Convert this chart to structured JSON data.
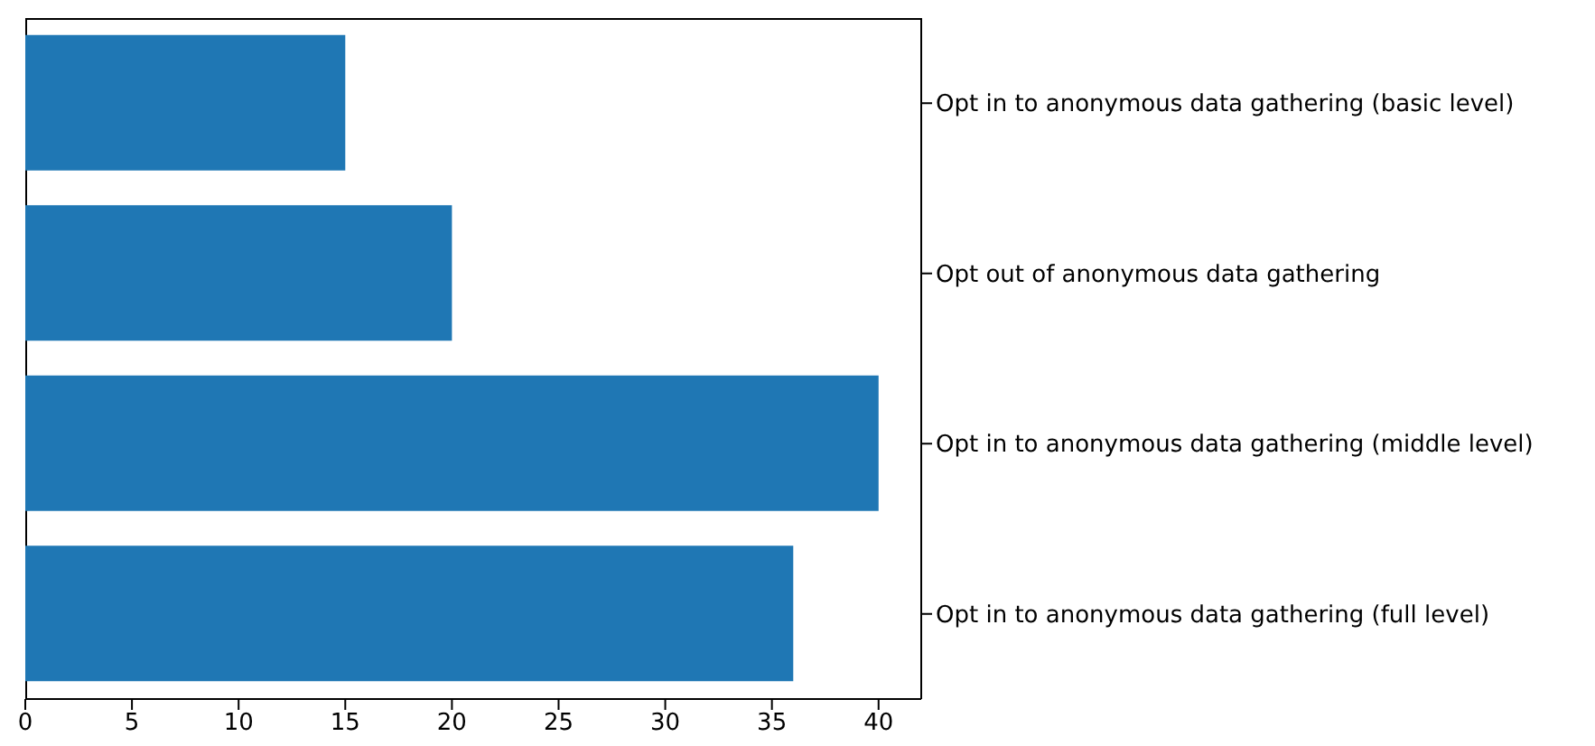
{
  "chart_data": {
    "type": "bar",
    "orientation": "horizontal",
    "categories": [
      "Opt in to anonymous data gathering (basic level)",
      "Opt out of anonymous data gathering",
      "Opt in to anonymous data gathering (middle level)",
      "Opt in to anonymous data gathering (full level)"
    ],
    "values": [
      15,
      20,
      40,
      36
    ],
    "color": "#1f77b4",
    "xlim": [
      0,
      42
    ],
    "xticks": [
      0,
      5,
      10,
      15,
      20,
      25,
      30,
      35,
      40
    ]
  }
}
